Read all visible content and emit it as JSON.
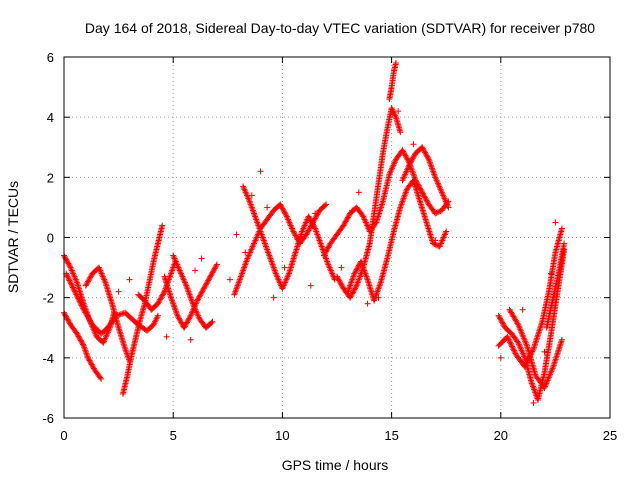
{
  "chart_data": {
    "type": "scatter",
    "title": "Day 164 of 2018, Sidereal Day-to-day VTEC variation (SDTVAR) for receiver p780",
    "xlabel": "GPS time / hours",
    "ylabel": "SDTVAR / TECUs",
    "xlim": [
      0,
      25
    ],
    "ylim": [
      -6,
      6
    ],
    "xticks": [
      0,
      5,
      10,
      15,
      20,
      25
    ],
    "yticks": [
      -6,
      -4,
      -2,
      0,
      2,
      4,
      6
    ],
    "xtick_labels": [
      "0",
      "5",
      "10",
      "15",
      "20",
      "25"
    ],
    "ytick_labels": [
      "-6",
      "-4",
      "-2",
      "0",
      "2",
      "4",
      "6"
    ],
    "grid": true,
    "marker": "+",
    "series": [
      {
        "name": "SDTVAR",
        "color": "#ff0000",
        "tracks": [
          {
            "x": [
              0.0,
              0.3,
              0.6,
              0.9,
              1.2,
              1.5,
              1.8,
              2.1,
              2.3
            ],
            "y": [
              -0.6,
              -1.0,
              -1.5,
              -2.2,
              -2.8,
              -3.3,
              -3.5,
              -3.0,
              -2.5
            ]
          },
          {
            "x": [
              0.0,
              0.3,
              0.6,
              0.9,
              1.1,
              1.4,
              1.7
            ],
            "y": [
              -2.5,
              -2.9,
              -3.2,
              -3.6,
              -4.0,
              -4.4,
              -4.7
            ]
          },
          {
            "x": [
              0.1,
              0.5,
              0.9,
              1.3,
              1.7,
              2.0,
              2.4,
              2.8,
              3.1,
              3.4,
              3.8,
              4.1,
              4.3
            ],
            "y": [
              -1.2,
              -1.8,
              -2.4,
              -2.9,
              -3.2,
              -3.0,
              -2.6,
              -2.5,
              -2.7,
              -2.9,
              -3.1,
              -2.9,
              -2.6
            ]
          },
          {
            "x": [
              1.0,
              1.3,
              1.6,
              1.9,
              2.2,
              2.5,
              2.8,
              3.0
            ],
            "y": [
              -1.6,
              -1.2,
              -1.0,
              -1.5,
              -2.2,
              -3.0,
              -3.7,
              -4.1
            ]
          },
          {
            "x": [
              2.7,
              2.9,
              3.1,
              3.3,
              3.5,
              3.7,
              3.9,
              4.1,
              4.3,
              4.5
            ],
            "y": [
              -5.2,
              -4.6,
              -3.9,
              -3.3,
              -2.7,
              -2.2,
              -1.5,
              -0.8,
              -0.2,
              0.4
            ]
          },
          {
            "x": [
              3.4,
              3.7,
              4.0,
              4.3,
              4.6,
              4.9,
              5.1
            ],
            "y": [
              -1.9,
              -2.1,
              -2.4,
              -2.2,
              -1.8,
              -1.2,
              -0.8
            ]
          },
          {
            "x": [
              4.6,
              4.9,
              5.2,
              5.5,
              5.8,
              6.1,
              6.4,
              6.7,
              7.0
            ],
            "y": [
              -1.3,
              -2.0,
              -2.6,
              -3.0,
              -2.6,
              -2.1,
              -1.7,
              -1.3,
              -0.9
            ]
          },
          {
            "x": [
              5.0,
              5.3,
              5.6,
              5.9,
              6.2,
              6.5,
              6.8
            ],
            "y": [
              -0.6,
              -1.1,
              -1.6,
              -2.2,
              -2.7,
              -3.0,
              -2.8
            ]
          },
          {
            "x": [
              7.8,
              8.1,
              8.4,
              8.7,
              9.0,
              9.3,
              9.6,
              9.9,
              10.2,
              10.5,
              10.8,
              11.1,
              11.4,
              11.7,
              12.0
            ],
            "y": [
              -1.9,
              -1.3,
              -0.7,
              -0.2,
              0.3,
              0.6,
              0.9,
              1.1,
              0.7,
              0.2,
              -0.2,
              0.1,
              0.5,
              0.9,
              1.1
            ]
          },
          {
            "x": [
              8.2,
              8.5,
              8.8,
              9.1,
              9.4,
              9.7,
              10.0,
              10.3,
              10.6,
              10.9,
              11.2,
              11.5,
              11.8,
              12.1,
              12.4
            ],
            "y": [
              1.7,
              1.2,
              0.6,
              0.0,
              -0.6,
              -1.2,
              -1.7,
              -1.2,
              -0.5,
              0.2,
              0.7,
              0.3,
              -0.3,
              -0.9,
              -1.4
            ]
          },
          {
            "x": [
              11.9,
              12.2,
              12.5,
              12.8,
              13.1,
              13.4,
              13.7,
              14.0,
              14.3,
              14.6,
              14.9,
              15.2,
              15.5,
              15.8,
              16.1,
              16.4,
              16.7,
              17.0,
              17.3,
              17.6
            ],
            "y": [
              -0.6,
              -0.2,
              0.1,
              0.4,
              0.8,
              1.0,
              0.7,
              0.2,
              0.5,
              1.2,
              2.1,
              2.6,
              2.9,
              2.5,
              1.9,
              1.5,
              1.1,
              0.8,
              0.9,
              1.2
            ]
          },
          {
            "x": [
              12.5,
              12.8,
              13.1,
              13.4,
              13.7,
              14.0,
              14.2,
              14.4,
              14.6,
              14.8,
              15.0,
              15.2,
              15.4
            ],
            "y": [
              -1.3,
              -1.7,
              -2.0,
              -1.6,
              -1.0,
              -0.2,
              0.8,
              1.8,
              2.8,
              3.6,
              4.3,
              4.0,
              3.5
            ]
          },
          {
            "x": [
              13.0,
              13.3,
              13.6,
              13.9,
              14.2,
              14.5,
              14.8,
              15.1,
              15.4,
              15.7,
              16.0,
              16.3,
              16.6,
              16.9,
              17.2,
              17.5
            ],
            "y": [
              -1.8,
              -1.2,
              -0.8,
              -1.4,
              -2.1,
              -1.5,
              -0.7,
              0.2,
              1.0,
              1.6,
              1.9,
              1.2,
              0.5,
              -0.2,
              -0.3,
              0.2
            ]
          },
          {
            "x": [
              14.9,
              15.0,
              15.1,
              15.2
            ],
            "y": [
              4.6,
              5.0,
              5.5,
              5.8
            ]
          },
          {
            "x": [
              15.5,
              15.8,
              16.1,
              16.4,
              16.7,
              17.0,
              17.3,
              17.6
            ],
            "y": [
              1.9,
              2.4,
              2.8,
              3.0,
              2.6,
              2.0,
              1.5,
              1.0
            ]
          },
          {
            "x": [
              19.9,
              20.2,
              20.5,
              20.8,
              21.1,
              21.4,
              21.7,
              22.0,
              22.3,
              22.6,
              22.9
            ],
            "y": [
              -2.6,
              -3.0,
              -3.2,
              -3.5,
              -4.0,
              -4.8,
              -5.4,
              -4.5,
              -3.2,
              -1.8,
              -0.4
            ]
          },
          {
            "x": [
              19.9,
              20.3,
              20.7,
              21.1,
              21.5,
              21.9,
              22.2,
              22.5,
              22.8
            ],
            "y": [
              -3.6,
              -3.3,
              -3.9,
              -4.3,
              -3.7,
              -2.8,
              -1.8,
              -0.5,
              0.3
            ]
          },
          {
            "x": [
              20.4,
              20.8,
              21.2,
              21.6,
              22.0,
              22.4,
              22.8
            ],
            "y": [
              -2.4,
              -2.9,
              -3.6,
              -4.6,
              -5.0,
              -4.3,
              -3.4
            ]
          },
          {
            "x": [
              22.1,
              22.4,
              22.7,
              22.9
            ],
            "y": [
              -3.0,
              -2.0,
              -1.0,
              -0.2
            ]
          }
        ],
        "isolated": [
          {
            "x": 2.5,
            "y": -1.8
          },
          {
            "x": 3.0,
            "y": -1.4
          },
          {
            "x": 4.7,
            "y": -3.3
          },
          {
            "x": 5.8,
            "y": -3.4
          },
          {
            "x": 6.0,
            "y": -1.1
          },
          {
            "x": 6.3,
            "y": -0.7
          },
          {
            "x": 7.6,
            "y": -1.4
          },
          {
            "x": 7.9,
            "y": 0.1
          },
          {
            "x": 8.3,
            "y": -0.5
          },
          {
            "x": 8.6,
            "y": 1.4
          },
          {
            "x": 9.0,
            "y": 2.2
          },
          {
            "x": 9.3,
            "y": 1.0
          },
          {
            "x": 9.6,
            "y": -2.0
          },
          {
            "x": 10.1,
            "y": -1.0
          },
          {
            "x": 11.3,
            "y": -1.6
          },
          {
            "x": 11.5,
            "y": 0.8
          },
          {
            "x": 12.7,
            "y": -1.0
          },
          {
            "x": 13.2,
            "y": 0.9
          },
          {
            "x": 13.5,
            "y": 1.5
          },
          {
            "x": 13.9,
            "y": -2.2
          },
          {
            "x": 14.4,
            "y": -2.0
          },
          {
            "x": 15.3,
            "y": 4.2
          },
          {
            "x": 16.0,
            "y": 3.1
          },
          {
            "x": 17.0,
            "y": -0.1
          },
          {
            "x": 20.0,
            "y": -4.0
          },
          {
            "x": 21.0,
            "y": -2.4
          },
          {
            "x": 21.5,
            "y": -5.5
          },
          {
            "x": 22.0,
            "y": -3.8
          },
          {
            "x": 22.5,
            "y": 0.5
          },
          {
            "x": 22.3,
            "y": -1.2
          }
        ]
      }
    ]
  }
}
